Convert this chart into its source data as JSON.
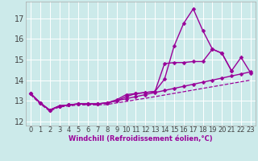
{
  "xlabel": "Windchill (Refroidissement éolien,°C)",
  "bg_color": "#cceaea",
  "line_color": "#990099",
  "grid_color": "#ffffff",
  "xlim": [
    -0.5,
    23.5
  ],
  "ylim": [
    11.8,
    17.8
  ],
  "yticks": [
    12,
    13,
    14,
    15,
    16,
    17
  ],
  "xticks": [
    0,
    1,
    2,
    3,
    4,
    5,
    6,
    7,
    8,
    9,
    10,
    11,
    12,
    13,
    14,
    15,
    16,
    17,
    18,
    19,
    20,
    21,
    22,
    23
  ],
  "lines": [
    {
      "x": [
        0,
        1,
        2,
        3,
        4,
        5,
        6,
        7,
        8,
        9,
        10,
        11,
        12,
        13,
        14,
        15,
        16,
        17,
        18,
        19,
        20,
        21
      ],
      "y": [
        13.35,
        12.9,
        12.55,
        12.75,
        12.8,
        12.85,
        12.85,
        12.85,
        12.9,
        13.05,
        13.3,
        13.35,
        13.4,
        13.45,
        14.05,
        15.65,
        16.75,
        17.45,
        16.4,
        15.5,
        15.3,
        14.45
      ],
      "marker": "D",
      "markersize": 2.5,
      "linewidth": 1.0
    },
    {
      "x": [
        0,
        1,
        2,
        3,
        4,
        5,
        6,
        7,
        8,
        9,
        10,
        11,
        12,
        13,
        14,
        15,
        16,
        17,
        18,
        19,
        20,
        21,
        22,
        23
      ],
      "y": [
        13.35,
        12.9,
        12.55,
        12.75,
        12.8,
        12.85,
        12.85,
        12.85,
        12.9,
        13.0,
        13.2,
        13.35,
        13.4,
        13.45,
        14.8,
        14.85,
        14.85,
        14.9,
        14.9,
        15.5,
        15.3,
        14.45,
        15.1,
        14.35
      ],
      "marker": "D",
      "markersize": 2.5,
      "linewidth": 1.0
    },
    {
      "x": [
        0,
        1,
        2,
        3,
        4,
        5,
        6,
        7,
        8,
        9,
        10,
        11,
        12,
        13,
        14,
        15,
        16,
        17,
        18,
        19,
        20,
        21,
        22,
        23
      ],
      "y": [
        13.35,
        12.9,
        12.55,
        12.75,
        12.8,
        12.85,
        12.85,
        12.85,
        12.9,
        13.0,
        13.1,
        13.2,
        13.3,
        13.4,
        13.5,
        13.6,
        13.7,
        13.8,
        13.9,
        14.0,
        14.1,
        14.2,
        14.3,
        14.4
      ],
      "marker": "D",
      "markersize": 2.5,
      "linewidth": 1.0
    },
    {
      "x": [
        0,
        1,
        2,
        3,
        4,
        5,
        6,
        7,
        8,
        9,
        10,
        11,
        12,
        13,
        14,
        15,
        16,
        17,
        18,
        19,
        20,
        21,
        22,
        23
      ],
      "y": [
        13.3,
        12.85,
        12.5,
        12.7,
        12.75,
        12.8,
        12.8,
        12.8,
        12.82,
        12.9,
        12.97,
        13.05,
        13.12,
        13.2,
        13.28,
        13.36,
        13.44,
        13.52,
        13.6,
        13.68,
        13.76,
        13.84,
        13.92,
        14.0
      ],
      "marker": null,
      "markersize": 0,
      "linewidth": 0.9,
      "linestyle": "--"
    }
  ],
  "tick_fontsize": 6,
  "xlabel_fontsize": 6,
  "tick_color": "#444444"
}
